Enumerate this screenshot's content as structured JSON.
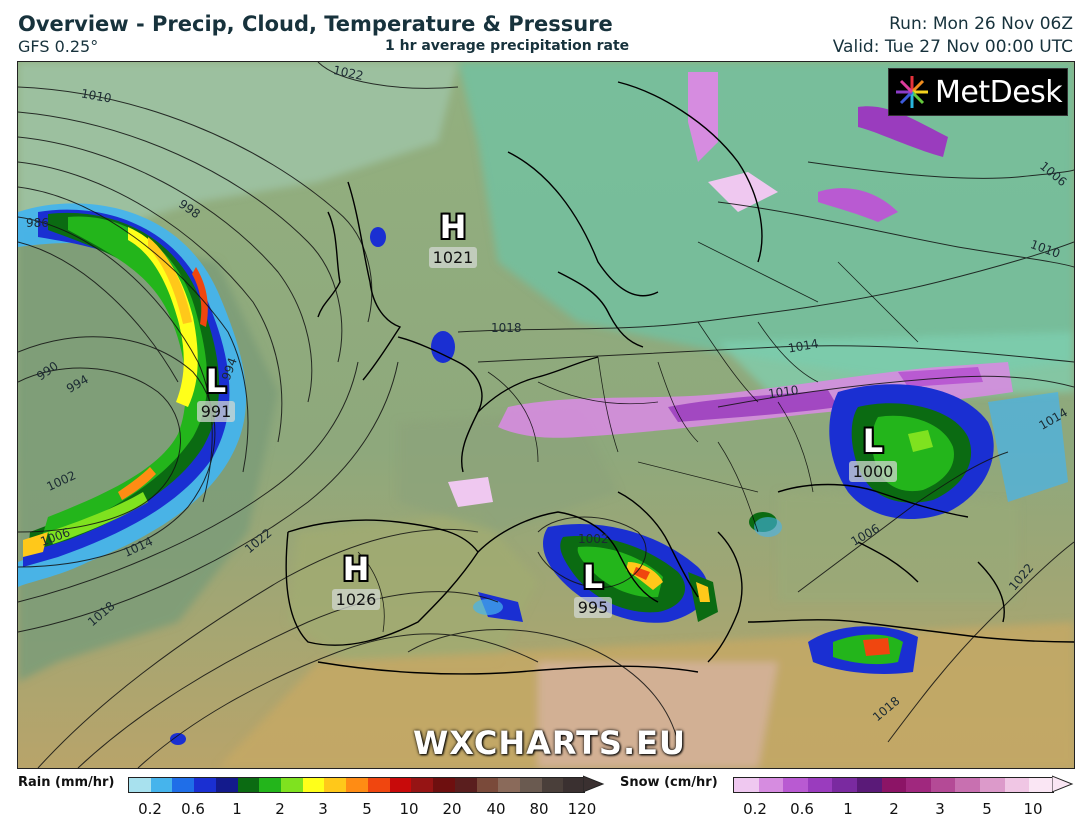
{
  "header": {
    "title": "Overview - Precip, Cloud, Temperature & Pressure",
    "model": "GFS 0.25°",
    "subtitle": "1 hr average precipitation rate",
    "run": "Run: Mon 26 Nov 06Z",
    "valid": "Valid: Tue 27 Nov 00:00 UTC"
  },
  "logo": {
    "text": "MetDesk"
  },
  "watermark": "WXCHARTS.EU",
  "pressure_centers": [
    {
      "type": "H",
      "value": "1021"
    },
    {
      "type": "L",
      "value": "991"
    },
    {
      "type": "L",
      "value": "1000"
    },
    {
      "type": "H",
      "value": "1026"
    },
    {
      "type": "L",
      "value": "995"
    }
  ],
  "isobar_labels": [
    "1022",
    "1010",
    "986",
    "998",
    "990",
    "994",
    "994",
    "1002",
    "1006",
    "1014",
    "1022",
    "1018",
    "1018",
    "1014",
    "1010",
    "1006",
    "1010",
    "1014",
    "1006",
    "1002",
    "1022",
    "1018"
  ],
  "legend": {
    "rain": {
      "label": "Rain (mm/hr)",
      "ticks": [
        "0.2",
        "0.6",
        "1",
        "2",
        "3",
        "5",
        "10",
        "20",
        "40",
        "80",
        "120"
      ],
      "colors": [
        "#a8e1ee",
        "#46b4ec",
        "#1f6ee8",
        "#1a2fd2",
        "#131a8c",
        "#0b6b12",
        "#23b51b",
        "#7fe21f",
        "#ffff1a",
        "#ffc81a",
        "#ff8c14",
        "#f0460f",
        "#c80a0a",
        "#961414",
        "#6e0f0f",
        "#5a1e1e",
        "#7a4a3a",
        "#8a6a5a",
        "#6a5a50",
        "#4a3f3a",
        "#3a3030"
      ]
    },
    "snow": {
      "label": "Snow (cm/hr)",
      "ticks": [
        "0.2",
        "0.6",
        "1",
        "2",
        "3",
        "5",
        "10"
      ],
      "colors": [
        "#efc8f0",
        "#d68ce0",
        "#b95ad2",
        "#9a3cbe",
        "#7a2aa0",
        "#5a1a78",
        "#8c1466",
        "#a0287e",
        "#b44a96",
        "#c870b0",
        "#dc9aca",
        "#f0c6e4",
        "#fae6f4"
      ]
    }
  }
}
